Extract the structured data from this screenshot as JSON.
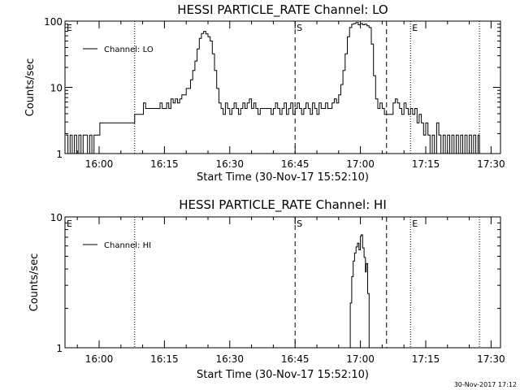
{
  "footer_timestamp": "30-Nov-2017 17:12",
  "chart_data": [
    {
      "type": "line",
      "title": "HESSI PARTICLE_RATE Channel: LO",
      "xlabel": "Start Time (30-Nov-17 15:52:10)",
      "ylabel": "Counts/sec",
      "y_scale": "log",
      "ylim": [
        1,
        100
      ],
      "y_ticks": [
        {
          "value": 1,
          "label": "1"
        },
        {
          "value": 10,
          "label": "10"
        },
        {
          "value": 100,
          "label": "100"
        }
      ],
      "xlim": [
        "15:52:10",
        "17:32:10"
      ],
      "x_ticks": [
        "16:00",
        "16:15",
        "16:30",
        "16:45",
        "17:00",
        "17:15",
        "17:30"
      ],
      "legend": {
        "position": "top-left",
        "entries": [
          "Channel: LO"
        ]
      },
      "markers": [
        {
          "label": "E",
          "time": "15:52:10",
          "style": "dotted"
        },
        {
          "label": "",
          "time": "16:08:10",
          "style": "dotted"
        },
        {
          "label": "S",
          "time": "16:45:00",
          "style": "dashed"
        },
        {
          "label": "",
          "time": "17:06:00",
          "style": "dashed"
        },
        {
          "label": "E",
          "time": "17:11:30",
          "style": "dotted"
        },
        {
          "label": "",
          "time": "17:27:20",
          "style": "dotted"
        }
      ],
      "series": [
        {
          "name": "Channel: LO",
          "points": [
            [
              "15:52:20",
              1.9
            ],
            [
              "15:52:50",
              1.0
            ],
            [
              "15:53:20",
              1.9
            ],
            [
              "15:53:50",
              1.0
            ],
            [
              "15:54:20",
              1.9
            ],
            [
              "15:54:50",
              1.0
            ],
            [
              "15:55:20",
              1.9
            ],
            [
              "15:55:50",
              1.0
            ],
            [
              "15:56:20",
              1.9
            ],
            [
              "15:56:50",
              1.9
            ],
            [
              "15:57:20",
              1.0
            ],
            [
              "15:57:50",
              1.9
            ],
            [
              "15:58:20",
              1.0
            ],
            [
              "15:58:50",
              1.9
            ],
            [
              "15:59:20",
              1.9
            ],
            [
              "16:00:00",
              1.9
            ],
            [
              "16:00:10",
              2.9
            ],
            [
              "16:02:00",
              2.9
            ],
            [
              "16:02:10",
              2.9
            ],
            [
              "16:08:00",
              2.9
            ],
            [
              "16:08:10",
              3.9
            ],
            [
              "16:10:00",
              3.9
            ],
            [
              "16:10:10",
              5.8
            ],
            [
              "16:10:40",
              4.8
            ],
            [
              "16:11:10",
              4.8
            ],
            [
              "16:13:30",
              4.8
            ],
            [
              "16:14:00",
              5.8
            ],
            [
              "16:14:30",
              4.8
            ],
            [
              "16:15:00",
              4.8
            ],
            [
              "16:15:30",
              5.8
            ],
            [
              "16:16:00",
              4.8
            ],
            [
              "16:16:30",
              6.7
            ],
            [
              "16:17:00",
              5.8
            ],
            [
              "16:17:30",
              6.7
            ],
            [
              "16:18:00",
              5.8
            ],
            [
              "16:18:30",
              6.7
            ],
            [
              "16:19:00",
              7.7
            ],
            [
              "16:19:30",
              7.7
            ],
            [
              "16:20:00",
              9.6
            ],
            [
              "16:20:30",
              9.6
            ],
            [
              "16:21:00",
              13
            ],
            [
              "16:21:30",
              18
            ],
            [
              "16:22:00",
              25
            ],
            [
              "16:22:30",
              38
            ],
            [
              "16:23:00",
              55
            ],
            [
              "16:23:30",
              65
            ],
            [
              "16:24:00",
              70
            ],
            [
              "16:24:30",
              64
            ],
            [
              "16:25:00",
              58
            ],
            [
              "16:25:30",
              50
            ],
            [
              "16:26:00",
              32
            ],
            [
              "16:26:30",
              18
            ],
            [
              "16:27:00",
              9.6
            ],
            [
              "16:27:30",
              5.8
            ],
            [
              "16:28:00",
              4.8
            ],
            [
              "16:28:30",
              3.9
            ],
            [
              "16:29:00",
              5.8
            ],
            [
              "16:29:30",
              4.8
            ],
            [
              "16:30:00",
              3.9
            ],
            [
              "16:30:30",
              4.8
            ],
            [
              "16:31:00",
              5.8
            ],
            [
              "16:31:30",
              4.8
            ],
            [
              "16:32:00",
              3.9
            ],
            [
              "16:32:30",
              4.8
            ],
            [
              "16:33:00",
              5.8
            ],
            [
              "16:33:30",
              4.8
            ],
            [
              "16:34:00",
              5.8
            ],
            [
              "16:34:30",
              6.7
            ],
            [
              "16:35:00",
              4.8
            ],
            [
              "16:35:30",
              5.8
            ],
            [
              "16:36:00",
              4.8
            ],
            [
              "16:36:30",
              3.9
            ],
            [
              "16:37:00",
              4.8
            ],
            [
              "16:38:00",
              4.8
            ],
            [
              "16:39:00",
              4.8
            ],
            [
              "16:39:30",
              3.9
            ],
            [
              "16:40:00",
              4.8
            ],
            [
              "16:40:30",
              5.8
            ],
            [
              "16:41:00",
              4.8
            ],
            [
              "16:41:30",
              3.9
            ],
            [
              "16:42:00",
              4.8
            ],
            [
              "16:42:30",
              5.8
            ],
            [
              "16:43:00",
              3.9
            ],
            [
              "16:43:30",
              4.8
            ],
            [
              "16:44:00",
              5.8
            ],
            [
              "16:44:30",
              3.9
            ],
            [
              "16:45:00",
              4.8
            ],
            [
              "16:45:30",
              5.8
            ],
            [
              "16:46:00",
              4.8
            ],
            [
              "16:46:30",
              3.9
            ],
            [
              "16:47:00",
              4.8
            ],
            [
              "16:47:30",
              5.8
            ],
            [
              "16:48:00",
              4.8
            ],
            [
              "16:48:30",
              3.9
            ],
            [
              "16:49:00",
              5.8
            ],
            [
              "16:49:30",
              4.8
            ],
            [
              "16:50:00",
              3.9
            ],
            [
              "16:50:30",
              5.8
            ],
            [
              "16:51:00",
              4.8
            ],
            [
              "16:51:30",
              4.8
            ],
            [
              "16:52:00",
              5.8
            ],
            [
              "16:52:30",
              4.8
            ],
            [
              "16:53:00",
              4.8
            ],
            [
              "16:53:30",
              5.8
            ],
            [
              "16:54:00",
              6.7
            ],
            [
              "16:54:30",
              5.8
            ],
            [
              "16:55:00",
              7.7
            ],
            [
              "16:55:30",
              11
            ],
            [
              "16:56:00",
              18
            ],
            [
              "16:56:30",
              32
            ],
            [
              "16:57:00",
              58
            ],
            [
              "16:57:30",
              80
            ],
            [
              "16:58:00",
              90
            ],
            [
              "16:58:30",
              92
            ],
            [
              "16:59:00",
              95
            ],
            [
              "16:59:30",
              88
            ],
            [
              "17:00:00",
              92
            ],
            [
              "17:00:30",
              88
            ],
            [
              "17:01:00",
              90
            ],
            [
              "17:01:30",
              85
            ],
            [
              "17:02:00",
              80
            ],
            [
              "17:02:30",
              45
            ],
            [
              "17:03:00",
              15
            ],
            [
              "17:03:30",
              6.7
            ],
            [
              "17:04:00",
              4.8
            ],
            [
              "17:04:30",
              5.8
            ],
            [
              "17:05:00",
              4.8
            ],
            [
              "17:05:30",
              3.9
            ],
            [
              "17:06:00",
              3.9
            ],
            [
              "17:07:00",
              3.9
            ],
            [
              "17:07:30",
              5.8
            ],
            [
              "17:08:00",
              6.7
            ],
            [
              "17:08:30",
              5.8
            ],
            [
              "17:09:00",
              4.8
            ],
            [
              "17:09:30",
              3.9
            ],
            [
              "17:10:00",
              5.8
            ],
            [
              "17:10:30",
              4.8
            ],
            [
              "17:11:00",
              3.9
            ],
            [
              "17:11:30",
              4.8
            ],
            [
              "17:12:00",
              3.9
            ],
            [
              "17:12:30",
              4.8
            ],
            [
              "17:13:00",
              2.9
            ],
            [
              "17:13:30",
              3.9
            ],
            [
              "17:14:00",
              2.9
            ],
            [
              "17:14:30",
              1.9
            ],
            [
              "17:15:00",
              2.9
            ],
            [
              "17:15:30",
              1.9
            ],
            [
              "17:16:00",
              1.0
            ],
            [
              "17:16:30",
              1.9
            ],
            [
              "17:17:00",
              1.0
            ],
            [
              "17:17:30",
              2.9
            ],
            [
              "17:18:00",
              1.9
            ],
            [
              "17:18:30",
              1.0
            ],
            [
              "17:19:00",
              1.9
            ],
            [
              "17:19:30",
              1.0
            ],
            [
              "17:20:00",
              1.9
            ],
            [
              "17:20:30",
              1.0
            ],
            [
              "17:21:00",
              1.9
            ],
            [
              "17:21:30",
              1.0
            ],
            [
              "17:22:00",
              1.9
            ],
            [
              "17:22:30",
              1.0
            ],
            [
              "17:23:00",
              1.9
            ],
            [
              "17:23:30",
              1.0
            ],
            [
              "17:24:00",
              1.9
            ],
            [
              "17:24:30",
              1.0
            ],
            [
              "17:25:00",
              1.9
            ],
            [
              "17:25:30",
              1.0
            ],
            [
              "17:26:00",
              1.9
            ],
            [
              "17:26:30",
              1.0
            ],
            [
              "17:27:00",
              1.9
            ],
            [
              "17:27:20",
              1.0
            ]
          ]
        }
      ]
    },
    {
      "type": "line",
      "title": "HESSI PARTICLE_RATE Channel: HI",
      "xlabel": "Start Time (30-Nov-17 15:52:10)",
      "ylabel": "Counts/sec",
      "y_scale": "log",
      "ylim": [
        1,
        10
      ],
      "y_ticks": [
        {
          "value": 1,
          "label": "1"
        },
        {
          "value": 10,
          "label": "10"
        }
      ],
      "xlim": [
        "15:52:10",
        "17:32:10"
      ],
      "x_ticks": [
        "16:00",
        "16:15",
        "16:30",
        "16:45",
        "17:00",
        "17:15",
        "17:30"
      ],
      "legend": {
        "position": "top-left",
        "entries": [
          "Channel: HI"
        ]
      },
      "markers": [
        {
          "label": "E",
          "time": "15:52:10",
          "style": "dotted"
        },
        {
          "label": "",
          "time": "16:08:10",
          "style": "dotted"
        },
        {
          "label": "S",
          "time": "16:45:00",
          "style": "dashed"
        },
        {
          "label": "",
          "time": "17:06:00",
          "style": "dashed"
        },
        {
          "label": "E",
          "time": "17:11:30",
          "style": "dotted"
        },
        {
          "label": "",
          "time": "17:27:20",
          "style": "dotted"
        }
      ],
      "series": [
        {
          "name": "Channel: HI",
          "points": [
            [
              "16:57:20",
              1.0
            ],
            [
              "16:57:40",
              2.2
            ],
            [
              "16:58:00",
              3.5
            ],
            [
              "16:58:20",
              4.6
            ],
            [
              "16:58:40",
              5.3
            ],
            [
              "16:59:00",
              5.9
            ],
            [
              "16:59:20",
              6.3
            ],
            [
              "16:59:40",
              5.6
            ],
            [
              "17:00:00",
              7.1
            ],
            [
              "17:00:10",
              7.3
            ],
            [
              "17:00:30",
              5.8
            ],
            [
              "17:00:50",
              4.9
            ],
            [
              "17:01:10",
              3.8
            ],
            [
              "17:01:20",
              4.4
            ],
            [
              "17:01:40",
              2.6
            ],
            [
              "17:02:00",
              1.0
            ]
          ]
        }
      ]
    }
  ]
}
